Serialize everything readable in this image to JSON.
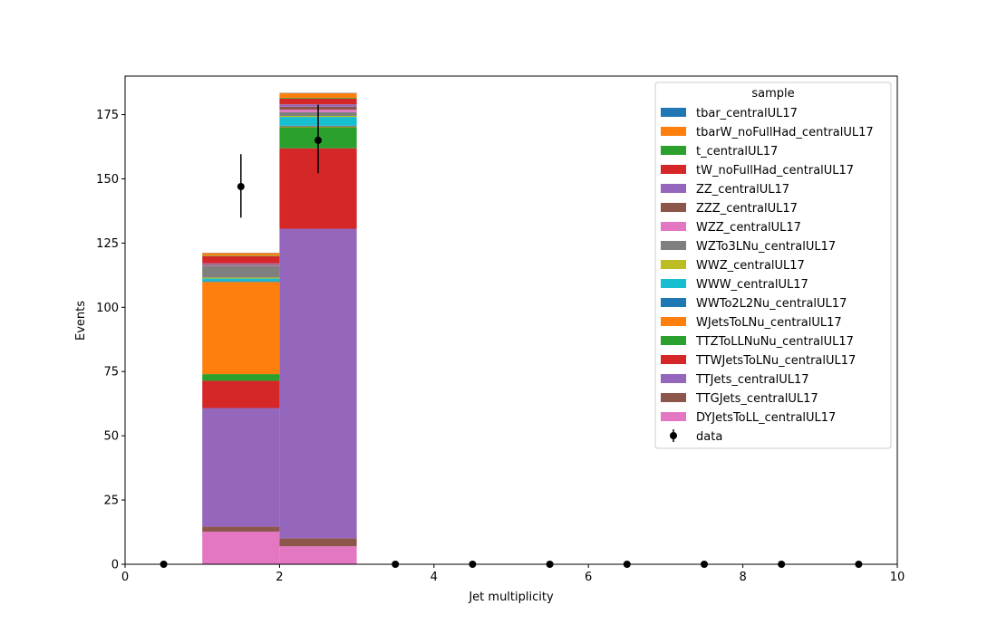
{
  "chart_data": {
    "type": "bar",
    "stacked": true,
    "xlabel": "Jet multiplicity",
    "ylabel": "Events",
    "xlim": [
      0,
      10
    ],
    "ylim": [
      0,
      190
    ],
    "xticks": [
      0,
      2,
      4,
      6,
      8,
      10
    ],
    "yticks": [
      0,
      25,
      50,
      75,
      100,
      125,
      150,
      175
    ],
    "grid": false,
    "legend": {
      "title": "sample",
      "placement": "top-right"
    },
    "bin_edges": [
      0,
      1,
      2,
      3,
      4,
      5,
      6,
      7,
      8,
      9,
      10
    ],
    "series": [
      {
        "name": "DYJetsToLL_centralUL17",
        "color": "#e377c2",
        "values": [
          0,
          12.7,
          7.0,
          0,
          0,
          0,
          0,
          0,
          0,
          0
        ]
      },
      {
        "name": "TTGJets_centralUL17",
        "color": "#8c564b",
        "values": [
          0,
          1.9,
          3.1,
          0,
          0,
          0,
          0,
          0,
          0,
          0
        ]
      },
      {
        "name": "TTJets_centralUL17",
        "color": "#9467bd",
        "values": [
          0,
          46.2,
          120.5,
          0,
          0,
          0,
          0,
          0,
          0,
          0
        ]
      },
      {
        "name": "TTWJetsToLNu_centralUL17",
        "color": "#d62728",
        "values": [
          0,
          10.6,
          31.3,
          0,
          0,
          0,
          0,
          0,
          0,
          0
        ]
      },
      {
        "name": "TTZToLLNuNu_centralUL17",
        "color": "#2ca02c",
        "values": [
          0,
          2.6,
          8.2,
          0,
          0,
          0,
          0,
          0,
          0,
          0
        ]
      },
      {
        "name": "WJetsToLNu_centralUL17",
        "color": "#ff7f0e",
        "values": [
          0,
          35.9,
          0.3,
          0,
          0,
          0,
          0,
          0,
          0,
          0
        ]
      },
      {
        "name": "WWTo2L2Nu_centralUL17",
        "color": "#1f77b4",
        "values": [
          0,
          0.3,
          0.3,
          0,
          0,
          0,
          0,
          0,
          0,
          0
        ]
      },
      {
        "name": "WWW_centralUL17",
        "color": "#17becf",
        "values": [
          0,
          1.0,
          3.4,
          0,
          0,
          0,
          0,
          0,
          0,
          0
        ]
      },
      {
        "name": "WWZ_centralUL17",
        "color": "#bcbd22",
        "values": [
          0,
          0.4,
          0.4,
          0,
          0,
          0,
          0,
          0,
          0,
          0
        ]
      },
      {
        "name": "WZTo3LNu_centralUL17",
        "color": "#7f7f7f",
        "values": [
          0,
          4.6,
          1.5,
          0,
          0,
          0,
          0,
          0,
          0,
          0
        ]
      },
      {
        "name": "WZZ_centralUL17",
        "color": "#e377c2",
        "values": [
          0,
          0.2,
          0.9,
          0,
          0,
          0,
          0,
          0,
          0,
          0
        ]
      },
      {
        "name": "ZZZ_centralUL17",
        "color": "#8c564b",
        "values": [
          0,
          0.3,
          1.2,
          0,
          0,
          0,
          0,
          0,
          0,
          0
        ]
      },
      {
        "name": "ZZ_centralUL17",
        "color": "#9467bd",
        "values": [
          0,
          0.4,
          0.9,
          0,
          0,
          0,
          0,
          0,
          0,
          0
        ]
      },
      {
        "name": "tW_noFullHad_centralUL17",
        "color": "#d62728",
        "values": [
          0,
          2.8,
          2.2,
          0,
          0,
          0,
          0,
          0,
          0,
          0
        ]
      },
      {
        "name": "t_centralUL17",
        "color": "#2ca02c",
        "values": [
          0,
          0.2,
          0.3,
          0,
          0,
          0,
          0,
          0,
          0,
          0
        ]
      },
      {
        "name": "tbarW_noFullHad_centralUL17",
        "color": "#ff7f0e",
        "values": [
          0,
          1.0,
          1.9,
          0,
          0,
          0,
          0,
          0,
          0,
          0
        ]
      },
      {
        "name": "tbar_centralUL17",
        "color": "#1f77b4",
        "values": [
          0,
          0.1,
          0.1,
          0,
          0,
          0,
          0,
          0,
          0,
          0
        ]
      }
    ],
    "legend_order": [
      "tbar_centralUL17",
      "tbarW_noFullHad_centralUL17",
      "t_centralUL17",
      "tW_noFullHad_centralUL17",
      "ZZ_centralUL17",
      "ZZZ_centralUL17",
      "WZZ_centralUL17",
      "WZTo3LNu_centralUL17",
      "WWZ_centralUL17",
      "WWW_centralUL17",
      "WWTo2L2Nu_centralUL17",
      "WJetsToLNu_centralUL17",
      "TTZToLLNuNu_centralUL17",
      "TTWJetsToLNu_centralUL17",
      "TTJets_centralUL17",
      "TTGJets_centralUL17",
      "DYJetsToLL_centralUL17"
    ],
    "data": {
      "name": "data",
      "x": [
        0.5,
        1.5,
        2.5,
        3.5,
        4.5,
        5.5,
        6.5,
        7.5,
        8.5,
        9.5
      ],
      "y": [
        0,
        147,
        165,
        0,
        0,
        0,
        0,
        0,
        0,
        0
      ],
      "yerr_low": [
        0,
        12.1,
        12.8,
        0,
        0,
        0,
        0,
        0,
        0,
        0
      ],
      "yerr_high": [
        0,
        12.6,
        13.9,
        0,
        0,
        0,
        0,
        0,
        0,
        0
      ]
    }
  }
}
